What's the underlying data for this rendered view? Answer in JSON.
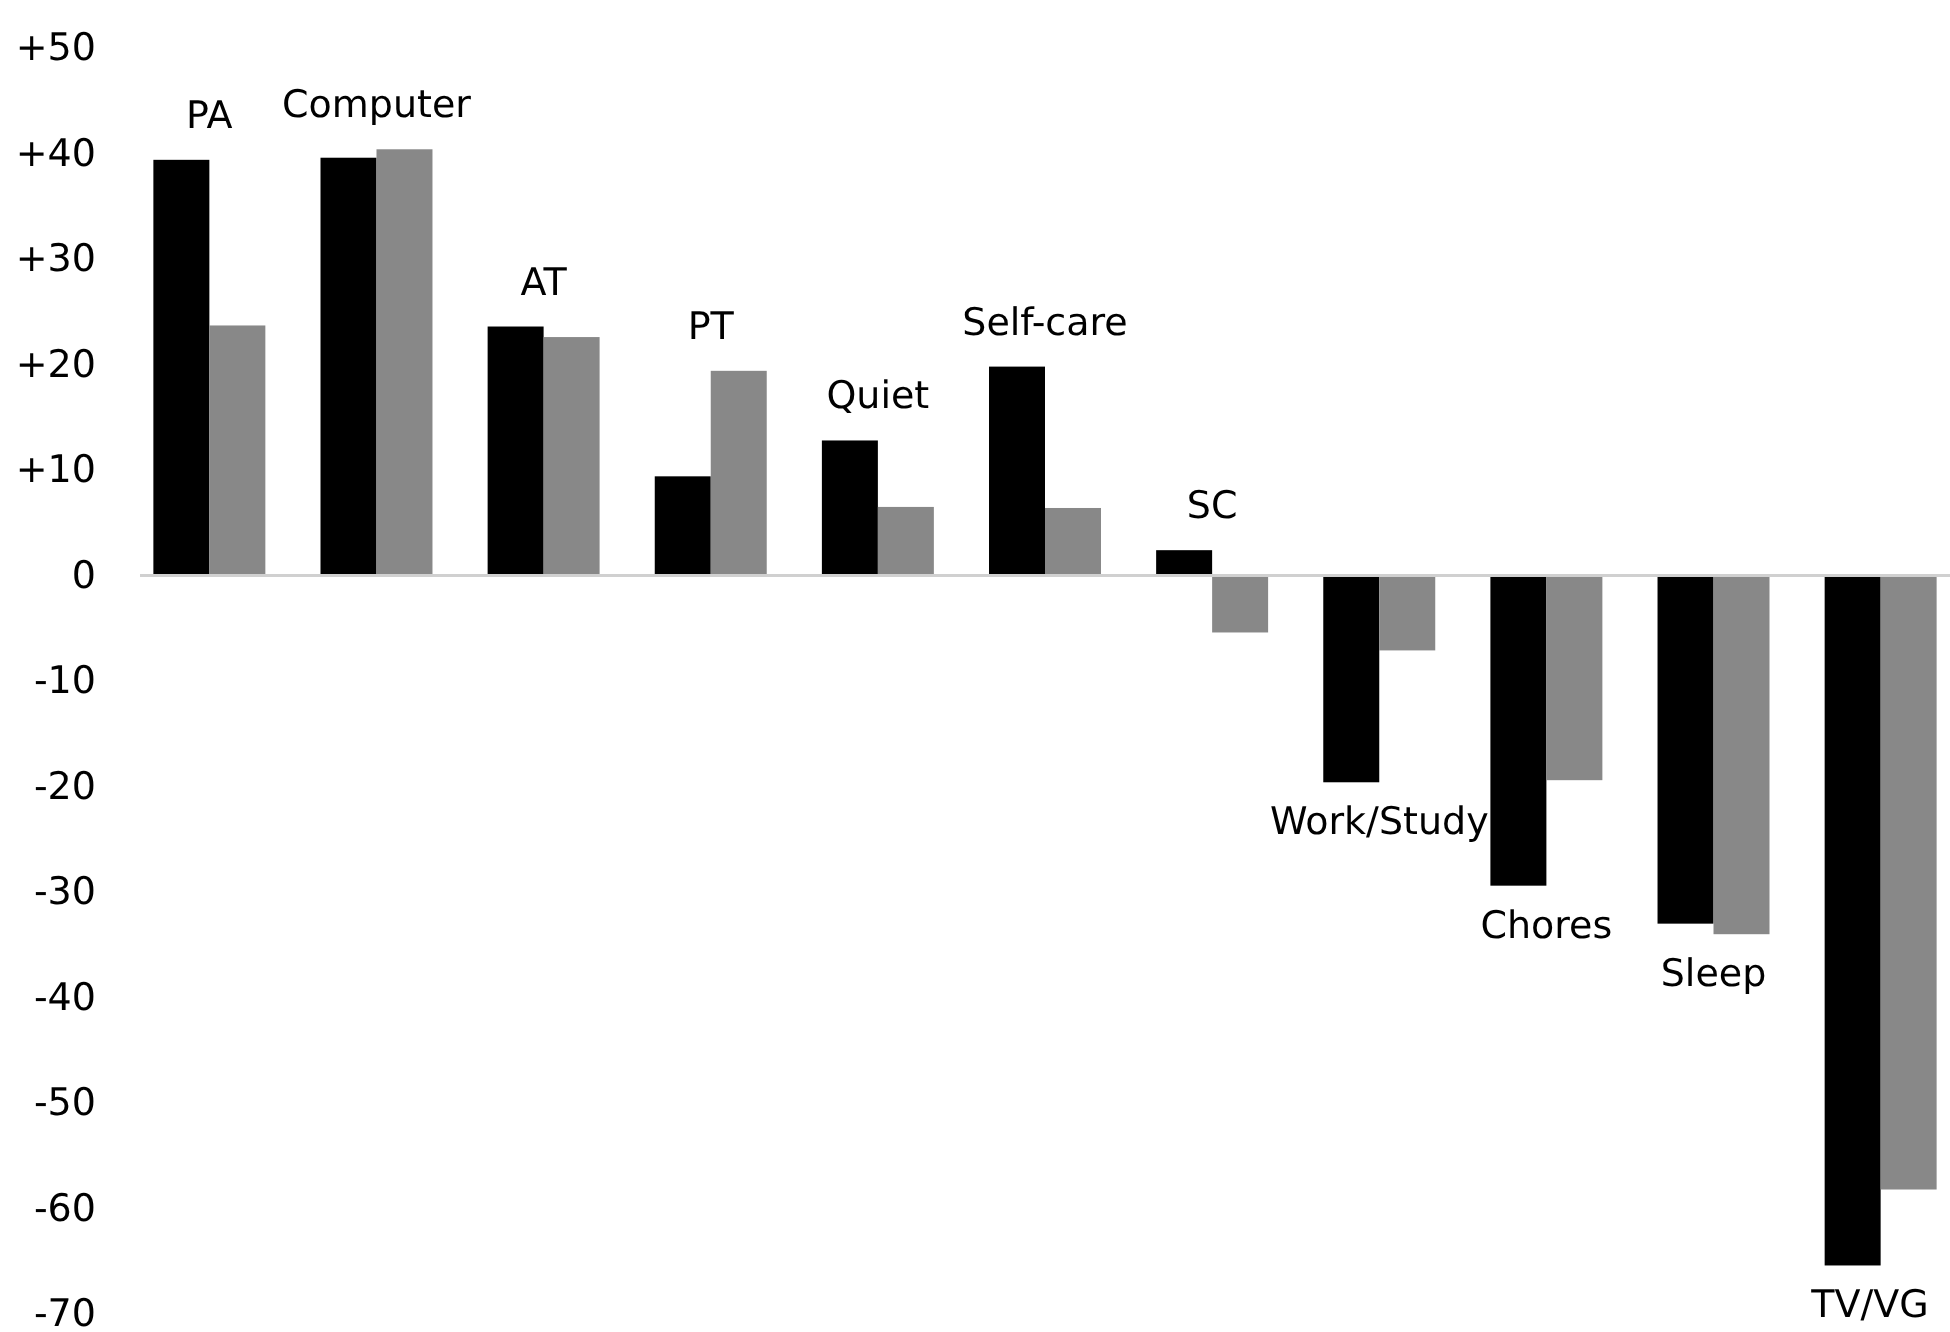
{
  "chart_data": {
    "type": "bar",
    "categories": [
      "PA",
      "Computer",
      "AT",
      "PT",
      "Quiet",
      "Self-care",
      "SC",
      "Work/Study",
      "Chores",
      "Sleep",
      "TV/VG"
    ],
    "series": [
      {
        "color": "#000000",
        "values": [
          39.4,
          39.6,
          23.6,
          9.4,
          12.8,
          19.8,
          2.4,
          -19.6,
          -29.4,
          -33,
          -65.4
        ]
      },
      {
        "color": "#888888",
        "values": [
          23.7,
          40.4,
          22.6,
          19.4,
          6.5,
          6.4,
          -5.4,
          -7.1,
          -19.4,
          -34,
          -58.2
        ]
      }
    ],
    "ylim": [
      -70,
      50
    ],
    "yticks": [
      {
        "value": 50,
        "label": "+50"
      },
      {
        "value": 40,
        "label": "+40"
      },
      {
        "value": 30,
        "label": "+30"
      },
      {
        "value": 20,
        "label": "+20"
      },
      {
        "value": 10,
        "label": "+10"
      },
      0,
      -10,
      -20,
      -30,
      -40,
      -50,
      -60,
      -70
    ]
  }
}
